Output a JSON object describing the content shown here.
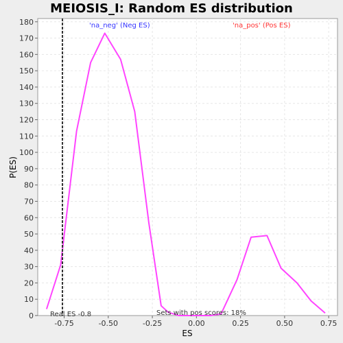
{
  "chart_data": {
    "type": "line",
    "title": "MEIOSIS_I: Random ES distribution",
    "xlabel": "ES",
    "ylabel": "P(ES)",
    "xlim": [
      -0.9,
      0.8
    ],
    "ylim": [
      0,
      182
    ],
    "x_ticks": [
      "-0.75",
      "-0.50",
      "-0.25",
      "0.00",
      "0.25",
      "0.50",
      "0.75"
    ],
    "x_tick_values": [
      -0.75,
      -0.5,
      -0.25,
      0.0,
      0.25,
      0.5,
      0.75
    ],
    "y_ticks": [
      "0",
      "10",
      "20",
      "30",
      "40",
      "50",
      "60",
      "70",
      "80",
      "90",
      "100",
      "110",
      "120",
      "130",
      "140",
      "150",
      "160",
      "170",
      "180"
    ],
    "y_tick_values": [
      0,
      10,
      20,
      30,
      40,
      50,
      60,
      70,
      80,
      90,
      100,
      110,
      120,
      130,
      140,
      150,
      160,
      170,
      180
    ],
    "grid": true,
    "series": [
      {
        "color": "#ff44ff",
        "x": [
          -0.85,
          -0.77,
          -0.68,
          -0.6,
          -0.52,
          -0.43,
          -0.35,
          -0.27,
          -0.2,
          -0.16,
          -0.1,
          0.0,
          0.08,
          0.14,
          0.23,
          0.31,
          0.4,
          0.48,
          0.57,
          0.65,
          0.73
        ],
        "y": [
          4,
          31,
          113,
          155,
          173,
          157,
          125,
          57,
          6,
          2,
          0,
          0,
          0,
          1,
          22,
          48,
          49,
          29,
          20,
          9,
          1.5
        ]
      }
    ],
    "real_es": {
      "x": -0.76,
      "label": "Real ES -0.8"
    },
    "annotations": [
      {
        "text": "'na_neg' (Neg ES)",
        "color": "#3333ff"
      },
      {
        "text": "'na_pos' (Pos ES)",
        "color": "#ff3333"
      },
      {
        "text": "Sets with pos scores: 18%",
        "color": "#333333"
      }
    ]
  }
}
